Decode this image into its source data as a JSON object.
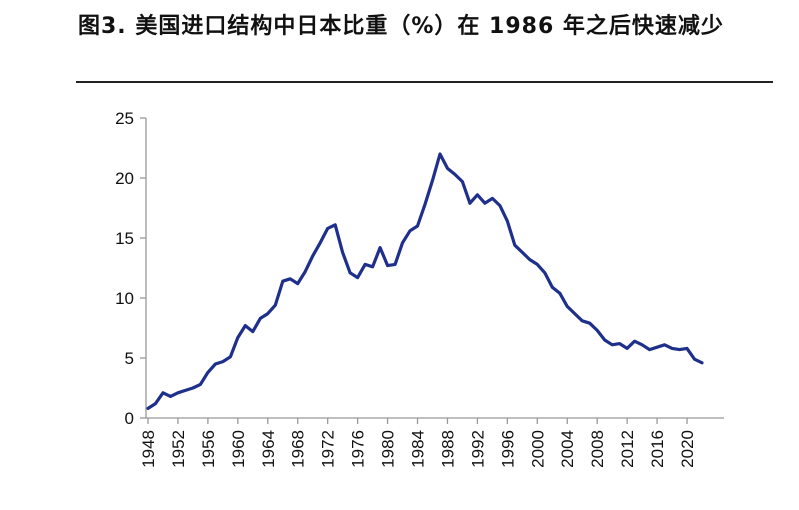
{
  "title": "图3. 美国进口结构中日本比重（%）在 1986 年之后快速减少",
  "chart_data": {
    "type": "line",
    "title": "图3. 美国进口结构中日本比重（%）在 1986 年之后快速减少",
    "xlabel": "",
    "ylabel": "",
    "ylim": [
      0,
      25
    ],
    "xlim": [
      1948,
      2022
    ],
    "yticks": [
      0,
      5,
      10,
      15,
      20,
      25
    ],
    "xticks": [
      1948,
      1952,
      1956,
      1960,
      1964,
      1968,
      1972,
      1976,
      1980,
      1984,
      1988,
      1992,
      1996,
      2000,
      2004,
      2008,
      2012,
      2016,
      2020
    ],
    "grid": false,
    "legend": "none",
    "series": [
      {
        "color": "#1f2f8c",
        "x": [
          1948,
          1949,
          1950,
          1951,
          1952,
          1953,
          1954,
          1955,
          1956,
          1957,
          1958,
          1959,
          1960,
          1961,
          1962,
          1963,
          1964,
          1965,
          1966,
          1967,
          1968,
          1969,
          1970,
          1971,
          1972,
          1973,
          1974,
          1975,
          1976,
          1977,
          1978,
          1979,
          1980,
          1981,
          1982,
          1983,
          1984,
          1985,
          1986,
          1987,
          1988,
          1989,
          1990,
          1991,
          1992,
          1993,
          1994,
          1995,
          1996,
          1997,
          1998,
          1999,
          2000,
          2001,
          2002,
          2003,
          2004,
          2005,
          2006,
          2007,
          2008,
          2009,
          2010,
          2011,
          2012,
          2013,
          2014,
          2015,
          2016,
          2017,
          2018,
          2019,
          2020,
          2021,
          2022
        ],
        "values": [
          0.8,
          1.2,
          2.1,
          1.8,
          2.1,
          2.3,
          2.5,
          2.8,
          3.8,
          4.5,
          4.7,
          5.1,
          6.7,
          7.7,
          7.2,
          8.3,
          8.7,
          9.4,
          11.4,
          11.6,
          11.2,
          12.2,
          13.5,
          14.6,
          15.8,
          16.1,
          13.8,
          12.1,
          11.7,
          12.8,
          12.6,
          14.2,
          12.7,
          12.8,
          14.6,
          15.6,
          16.0,
          17.8,
          19.8,
          22.0,
          20.8,
          20.3,
          19.7,
          17.9,
          18.6,
          17.9,
          18.3,
          17.7,
          16.4,
          14.4,
          13.8,
          13.2,
          12.8,
          12.1,
          10.9,
          10.4,
          9.3,
          8.7,
          8.1,
          7.9,
          7.3,
          6.5,
          6.1,
          6.2,
          5.8,
          6.4,
          6.1,
          5.7,
          5.9,
          6.1,
          5.8,
          5.7,
          5.8,
          4.9,
          4.6
        ]
      }
    ]
  }
}
